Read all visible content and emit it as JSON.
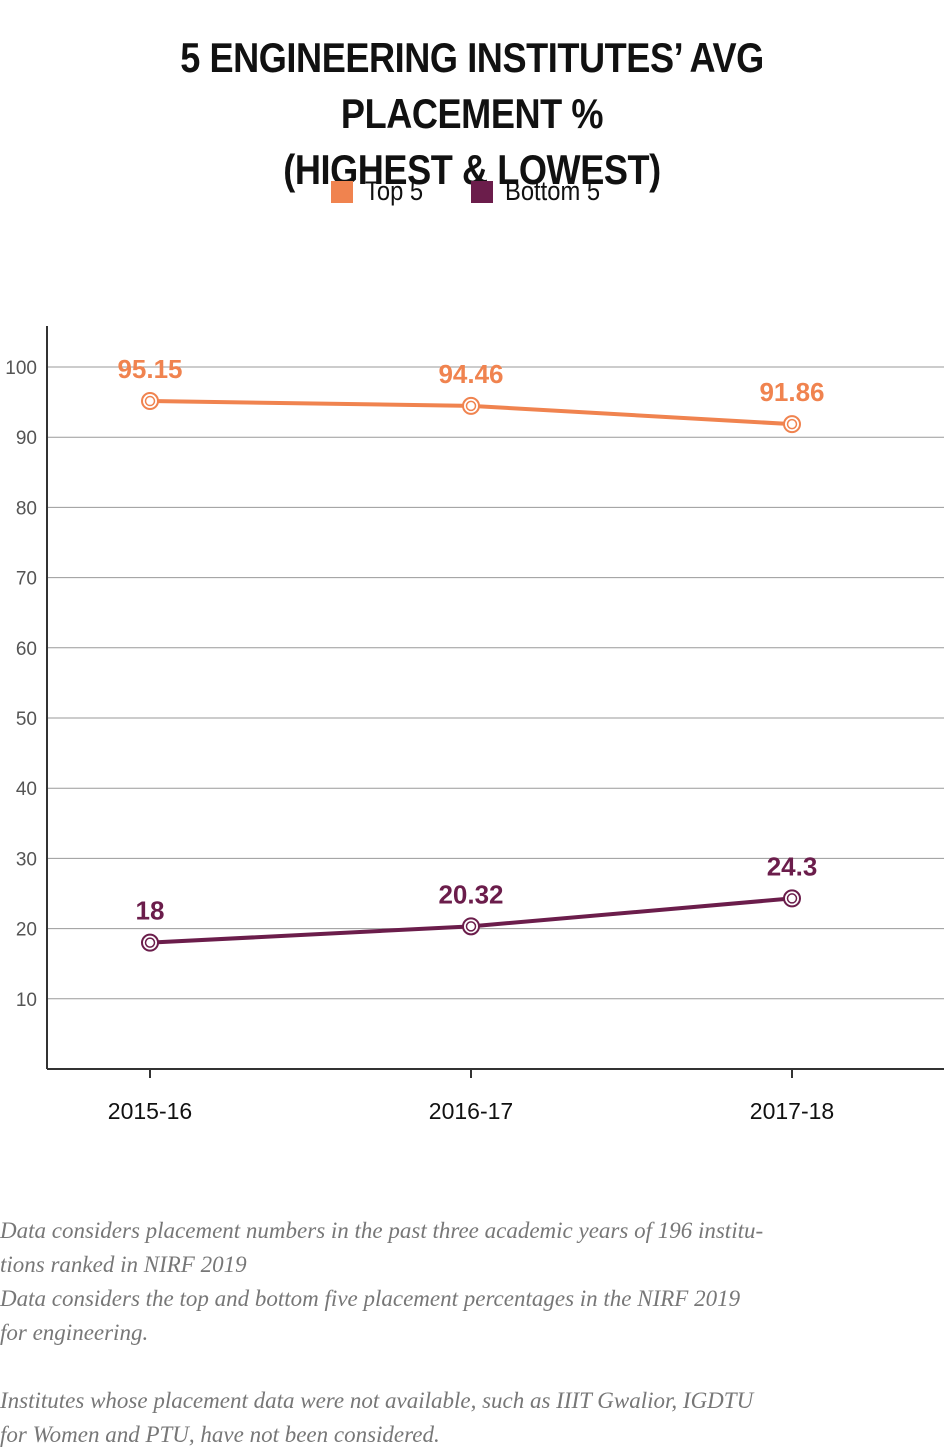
{
  "title": {
    "line1": "5 ENGINEERING INSTITUTES’ AVG PLACEMENT %",
    "line2": "(HIGHEST & LOWEST)"
  },
  "chart_data": {
    "type": "line",
    "categories": [
      "2015-16",
      "2016-17",
      "2017-18"
    ],
    "series": [
      {
        "name": "Top 5",
        "values": [
          95.15,
          94.46,
          91.86
        ],
        "labels": [
          "95.15",
          "94.46",
          "91.86"
        ],
        "color": "#f0834f"
      },
      {
        "name": "Bottom 5",
        "values": [
          18,
          20.32,
          24.3
        ],
        "labels": [
          "18",
          "20.32",
          "24.3"
        ],
        "color": "#6b1d4b"
      }
    ],
    "yticks": [
      10,
      20,
      30,
      40,
      50,
      60,
      70,
      80,
      90,
      100
    ],
    "ylim": [
      0,
      105
    ],
    "grid": true,
    "legend": "top-center"
  },
  "notes": {
    "line1": "Data considers placement numbers in the past three academic years of 196 institu-",
    "line2": "tions ranked in NIRF 2019",
    "line3": "Data considers the top and bottom five placement percentages in the NIRF 2019",
    "line4": "for engineering.",
    "line5": "Institutes whose placement data were not available, such as IIIT Gwalior, IGDTU",
    "line6": "for Women and PTU, have not been considered."
  }
}
